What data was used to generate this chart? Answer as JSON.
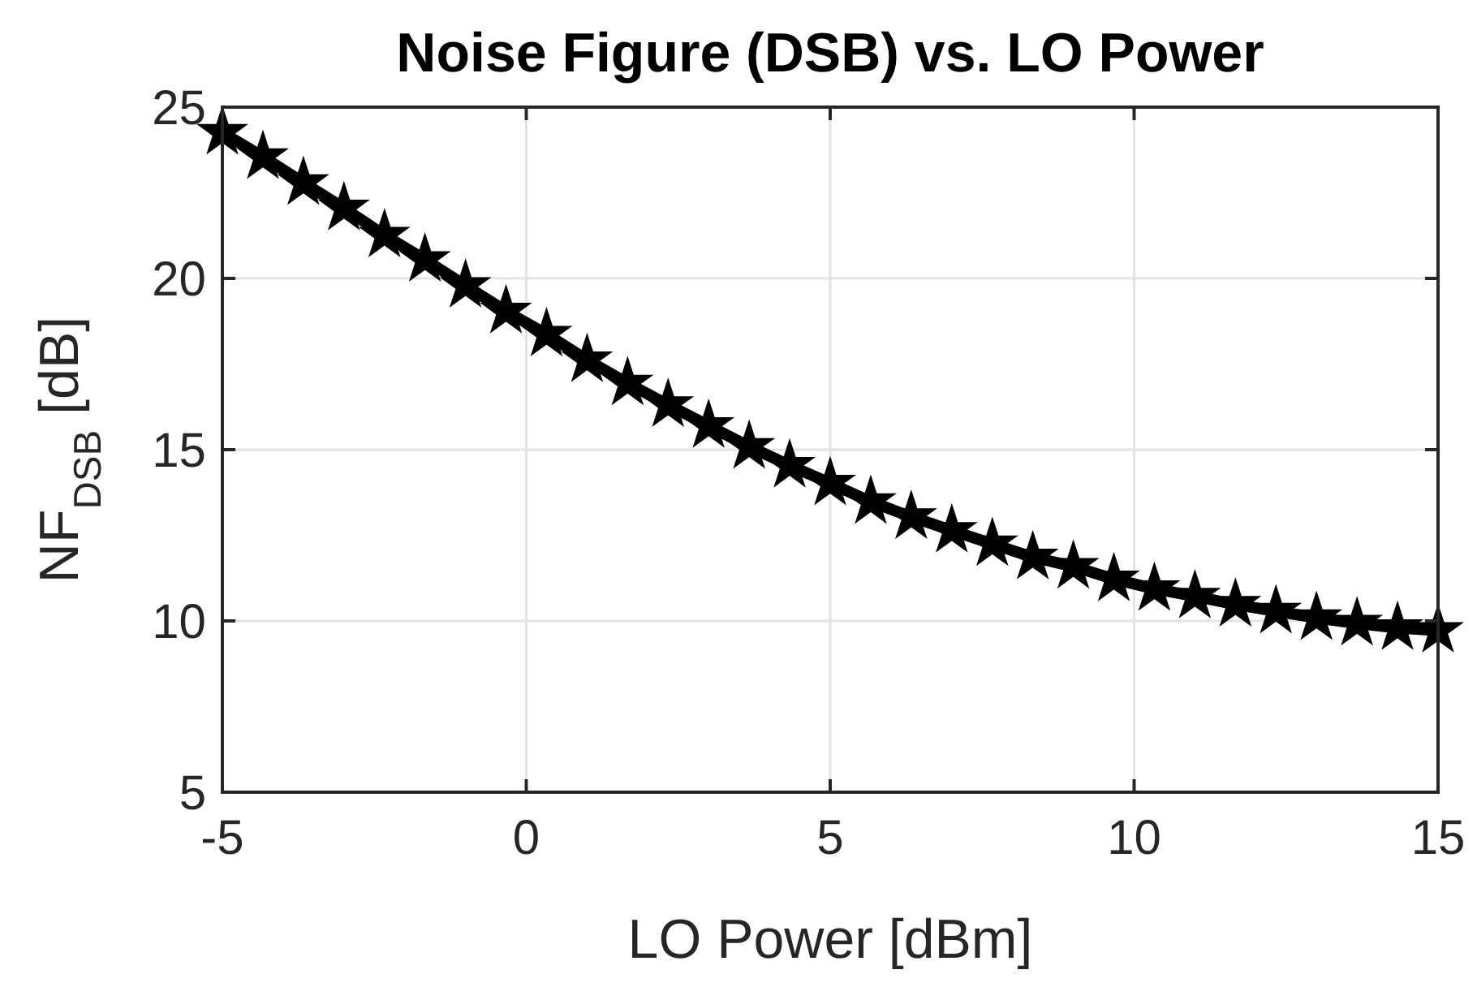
{
  "chart_data": {
    "type": "line",
    "title": "Noise Figure (DSB) vs. LO Power",
    "xlabel": "LO Power [dBm]",
    "ylabel": "NF$_{DSB}$ [dB]",
    "x": [
      -5,
      -4.333,
      -3.667,
      -3,
      -2.333,
      -1.667,
      -1,
      -0.333,
      0.333,
      1,
      1.667,
      2.333,
      3,
      3.667,
      4.333,
      5,
      5.667,
      6.333,
      7,
      7.667,
      8.333,
      9,
      9.667,
      10.333,
      11,
      11.667,
      12.333,
      13,
      13.667,
      14.333,
      15
    ],
    "series": [
      {
        "color": "#000000",
        "values": [
          24.26,
          23.55,
          22.79,
          22.05,
          21.26,
          20.55,
          19.79,
          19.04,
          18.37,
          17.62,
          16.94,
          16.31,
          15.7,
          15.09,
          14.54,
          14.02,
          13.48,
          13.04,
          12.64,
          12.25,
          11.86,
          11.59,
          11.22,
          10.94,
          10.72,
          10.48,
          10.28,
          10.09,
          9.93,
          9.8,
          9.72
        ]
      }
    ],
    "xlim": [
      -5,
      15
    ],
    "ylim": [
      5,
      25
    ],
    "xticks": [
      -5,
      0,
      5,
      10,
      15
    ],
    "yticks": [
      5,
      10,
      15,
      20,
      25
    ],
    "grid": true,
    "marker": "star",
    "line_style": "solid"
  }
}
